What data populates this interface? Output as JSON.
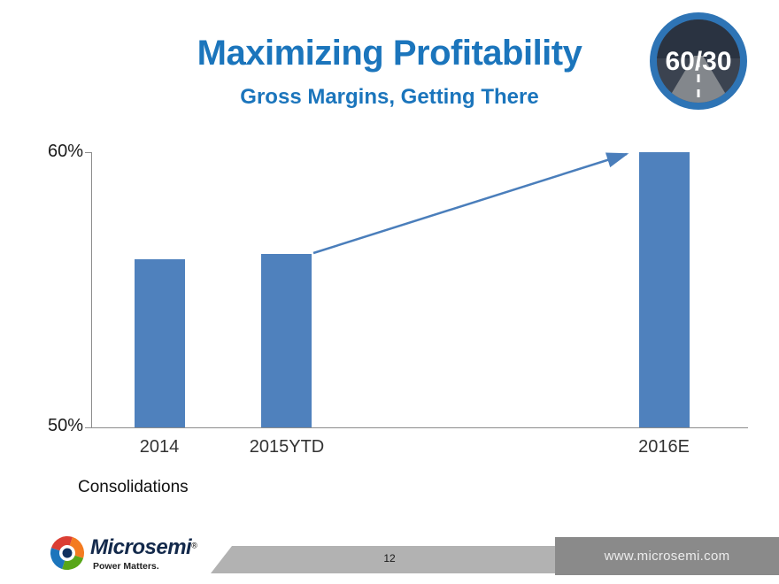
{
  "slide": {
    "title": "Maximizing Profitability",
    "subtitle": "Gross Margins, Getting There",
    "badge_label": "60/30",
    "note": "Consolidations"
  },
  "chart_data": {
    "type": "bar",
    "title": "Gross Margins, Getting There",
    "categories": [
      "2014",
      "2015YTD",
      "2016E"
    ],
    "values": [
      56.1,
      56.3,
      60.0
    ],
    "value_unit": "percent",
    "ylim": [
      50,
      60
    ],
    "y_tick_labels": [
      "60%",
      "50%"
    ],
    "grid": false,
    "bar_color": "#4F81BD",
    "arrow_color": "#4A7EBB",
    "annotation": {
      "type": "trend-arrow",
      "from_category": "2015YTD",
      "to_category": "2016E"
    }
  },
  "footer": {
    "logo_name": "Microsemi",
    "logo_mark": "®",
    "logo_tagline": "Power Matters.",
    "page_number": "12",
    "website": "www.microsemi.com"
  },
  "colors": {
    "title_blue": "#1B75BC",
    "bar_blue": "#4F81BD",
    "badge_ring_blue": "#2E74B5",
    "badge_inner_dark": "#3B4350",
    "footer_band_gray": "#B2B2B2",
    "footer_box_gray": "#8A8A8A"
  }
}
